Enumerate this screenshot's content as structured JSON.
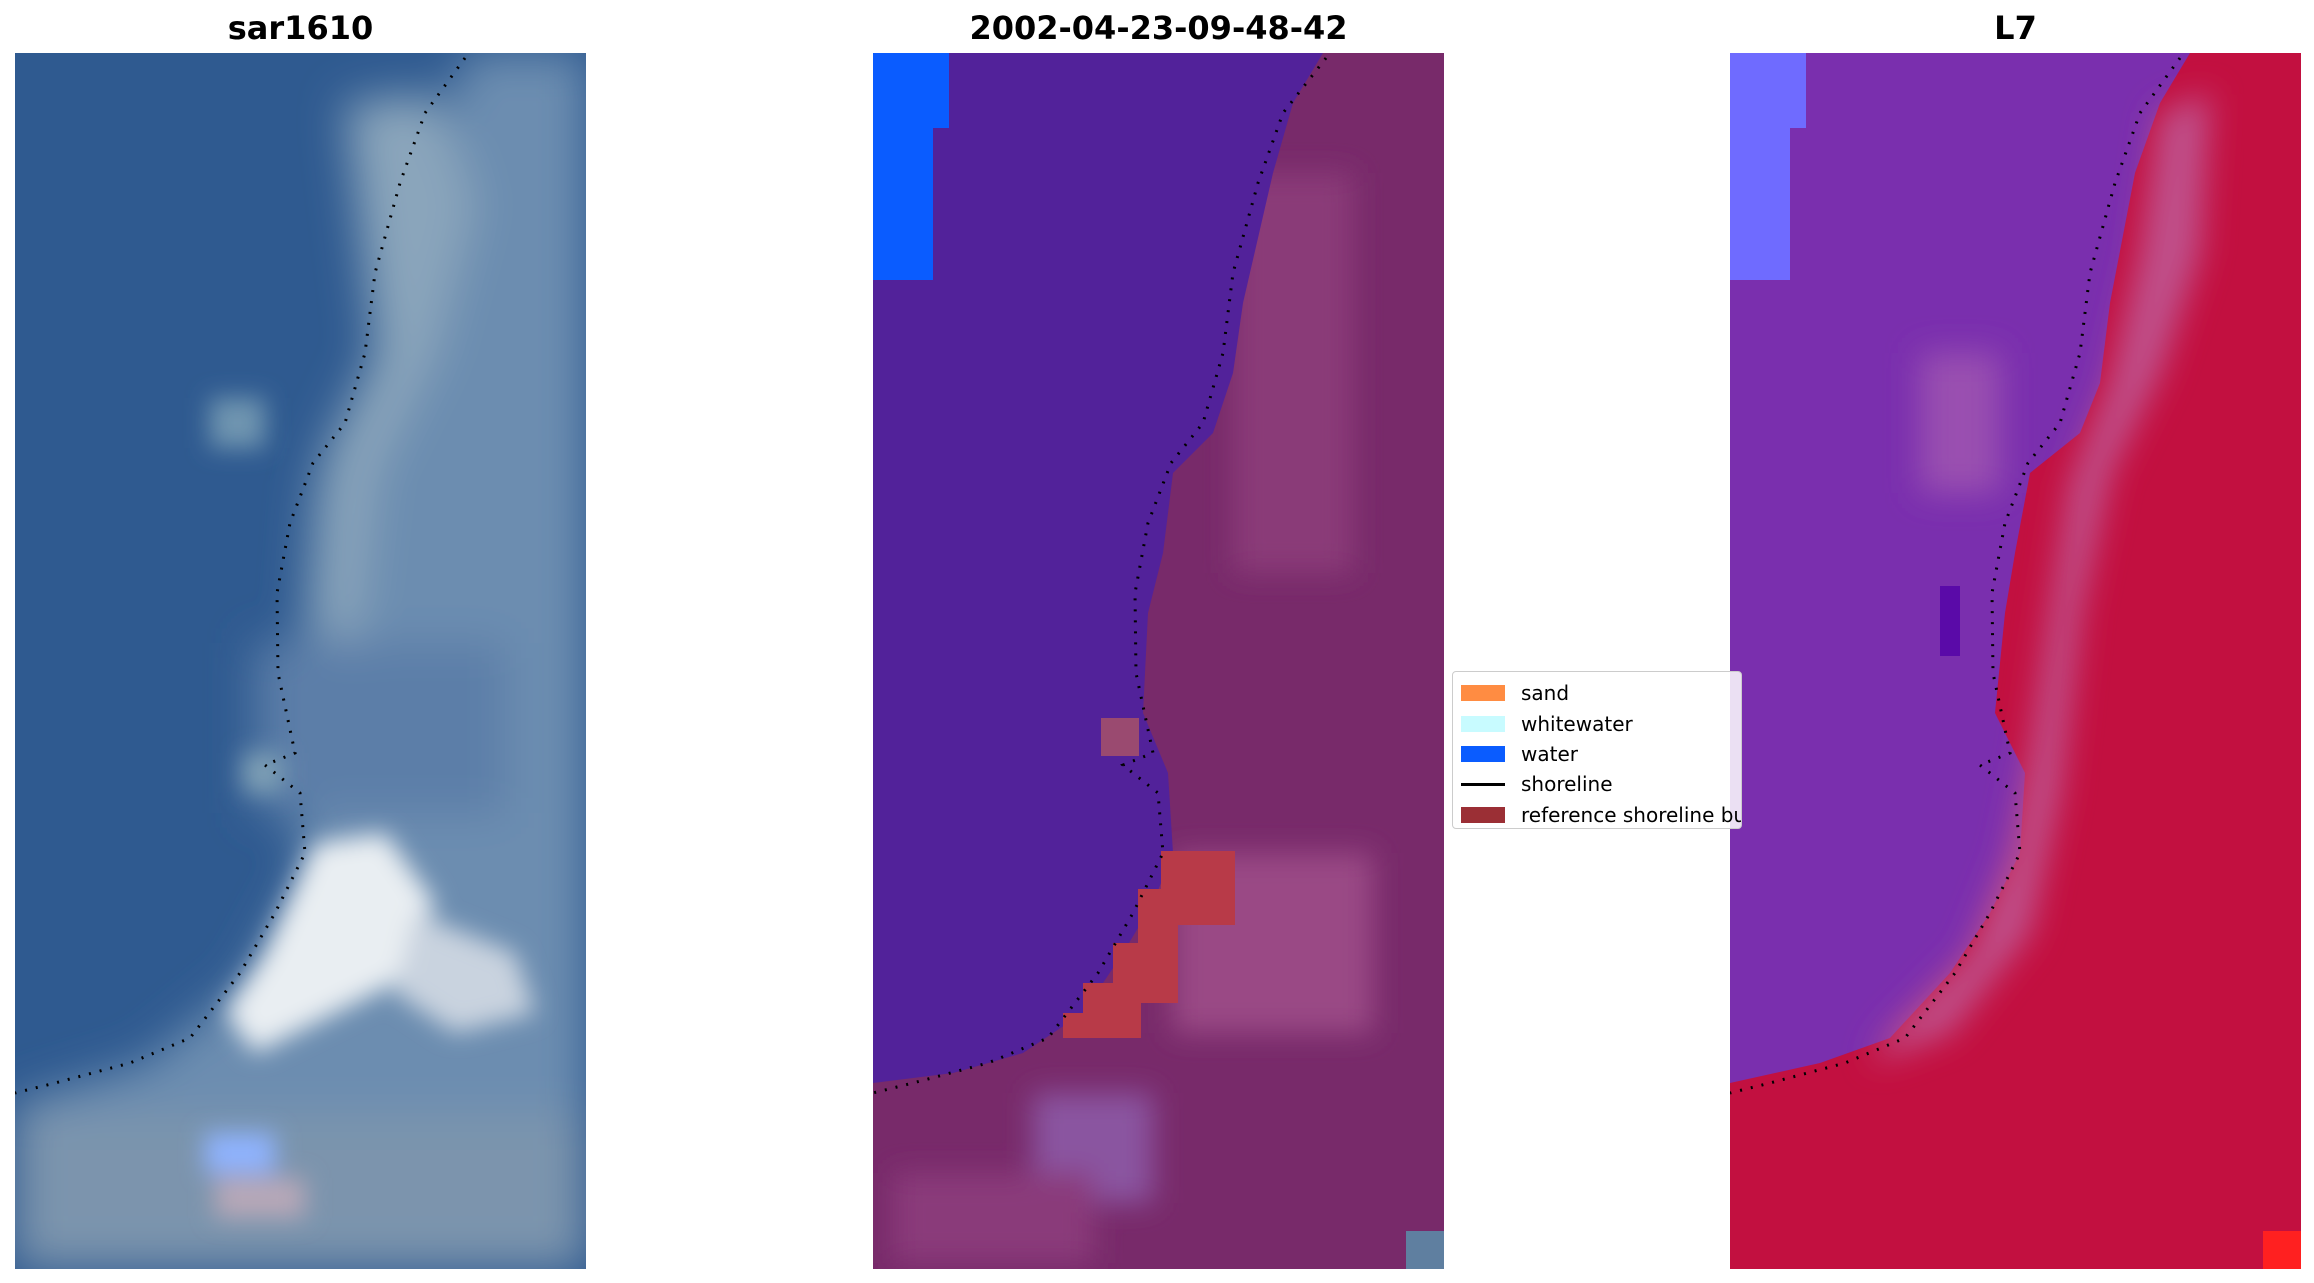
{
  "panels": [
    {
      "title": "sar1610"
    },
    {
      "title": "2002-04-23-09-48-42"
    },
    {
      "title": "L7"
    }
  ],
  "legend": {
    "items": [
      {
        "label": "sand",
        "color": "#ff8c42",
        "kind": "patch"
      },
      {
        "label": "whitewater",
        "color": "#c8fbff",
        "kind": "patch"
      },
      {
        "label": "water",
        "color": "#0a5cff",
        "kind": "patch"
      },
      {
        "label": "shoreline",
        "color": "#000000",
        "kind": "line"
      },
      {
        "label": "reference shoreline buffer",
        "color": "#9b2f35",
        "kind": "patch"
      }
    ]
  },
  "colors": {
    "rgb_water": "#2f5a90",
    "rgb_land": "#6f8fb0",
    "rgb_surf": "#e8eef2",
    "class_water": "#52229a",
    "class_land": "#782a6a",
    "class_buffer": "#b83a48",
    "class_water_pixel": "#0a5cff",
    "index_water": "#7a2fae",
    "index_land": "#c21040",
    "index_water_pixel": "#6f6bff",
    "index_land_pixel": "#ff2020"
  }
}
